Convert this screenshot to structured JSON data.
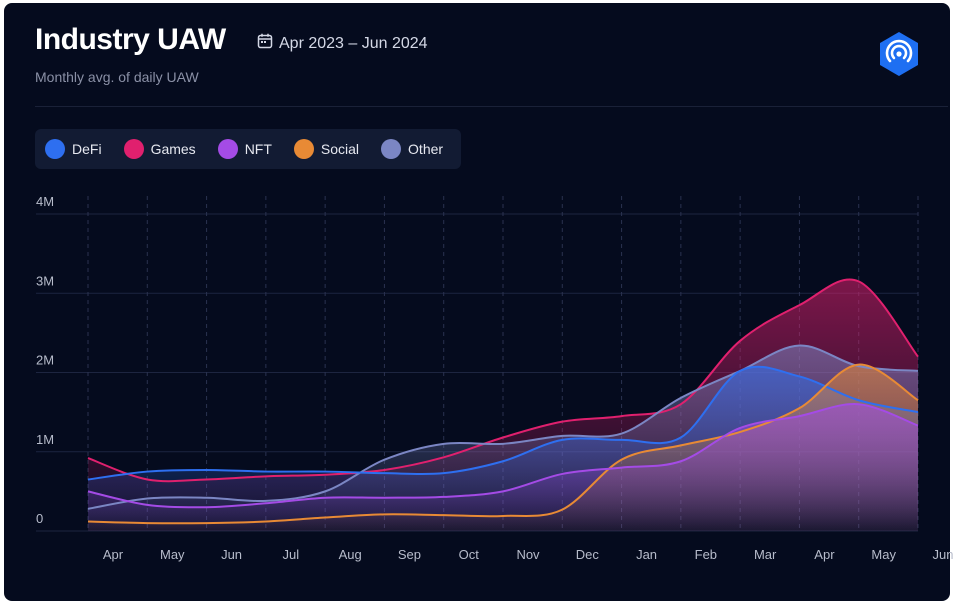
{
  "header": {
    "title": "Industry UAW",
    "date_range": "Apr 2023 – Jun 2024",
    "subtitle": "Monthly avg. of daily UAW",
    "calendar_icon": "calendar-icon",
    "brand_icon": "hexagon-radar-logo-icon"
  },
  "colors": {
    "background": "#050b1e",
    "DeFi": "#2e6ff0",
    "Games": "#e0206e",
    "NFT": "#a44be6",
    "Social": "#e88a35",
    "Other": "#7b86c4"
  },
  "legend": [
    {
      "key": "DeFi",
      "label": "DeFi"
    },
    {
      "key": "Games",
      "label": "Games"
    },
    {
      "key": "NFT",
      "label": "NFT"
    },
    {
      "key": "Social",
      "label": "Social"
    },
    {
      "key": "Other",
      "label": "Other"
    }
  ],
  "chart_data": {
    "type": "area",
    "categories": [
      "Apr",
      "May",
      "Jun",
      "Jul",
      "Aug",
      "Sep",
      "Oct",
      "Nov",
      "Dec",
      "Jan",
      "Feb",
      "Mar",
      "Apr",
      "May",
      "Jun"
    ],
    "y_ticks": [
      "0",
      "1M",
      "2M",
      "3M",
      "4M"
    ],
    "ylim": [
      0,
      4000000
    ],
    "grid": true,
    "legend_position": "top-left",
    "series": [
      {
        "name": "Games",
        "values": [
          920000,
          650000,
          650000,
          690000,
          710000,
          770000,
          930000,
          1180000,
          1380000,
          1450000,
          1600000,
          2400000,
          2850000,
          3150000,
          2200000
        ]
      },
      {
        "name": "Other",
        "values": [
          280000,
          410000,
          420000,
          380000,
          500000,
          900000,
          1100000,
          1100000,
          1200000,
          1230000,
          1680000,
          2020000,
          2340000,
          2080000,
          2020000
        ]
      },
      {
        "name": "DeFi",
        "values": [
          650000,
          750000,
          770000,
          750000,
          750000,
          730000,
          730000,
          880000,
          1150000,
          1150000,
          1180000,
          2020000,
          1950000,
          1650000,
          1500000
        ]
      },
      {
        "name": "Social",
        "values": [
          120000,
          100000,
          100000,
          120000,
          170000,
          210000,
          200000,
          190000,
          270000,
          900000,
          1080000,
          1250000,
          1550000,
          2100000,
          1650000
        ]
      },
      {
        "name": "NFT",
        "values": [
          500000,
          330000,
          300000,
          350000,
          420000,
          420000,
          430000,
          500000,
          720000,
          800000,
          880000,
          1300000,
          1450000,
          1600000,
          1330000
        ]
      }
    ]
  }
}
